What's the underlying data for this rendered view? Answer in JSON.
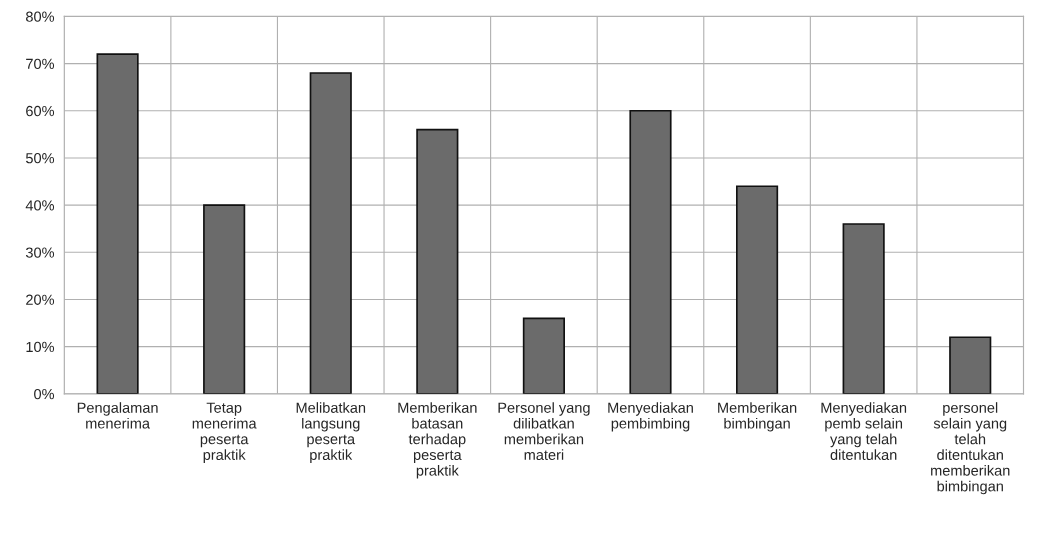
{
  "chart_data": {
    "type": "bar",
    "categories": [
      "Pengalaman\nmenerima",
      "Tetap\nmenerima\npeserta\npraktik",
      "Melibatkan\nlangsung\npeserta\npraktik",
      "Memberikan\nbatasan\nterhadap\npeserta\npraktik",
      "Personel yang\ndilibatkan\nmemberikan\nmateri",
      "Menyediakan\npembimbing",
      "Memberikan\nbimbingan",
      "Menyediakan\npemb selain\nyang telah\nditentukan",
      "personel\nselain yang\ntelah\nditentukan\nmemberikan\nbimbingan"
    ],
    "values": [
      72,
      40,
      68,
      56,
      16,
      60,
      44,
      36,
      12
    ],
    "color": "#6b6b6b",
    "ylim": [
      0,
      80
    ],
    "yticks": [
      {
        "value": 0,
        "label": "0%"
      },
      {
        "value": 10,
        "label": "10%"
      },
      {
        "value": 20,
        "label": "20%"
      },
      {
        "value": 30,
        "label": "30%"
      },
      {
        "value": 40,
        "label": "40%"
      },
      {
        "value": 50,
        "label": "50%"
      },
      {
        "value": 60,
        "label": "60%"
      },
      {
        "value": 70,
        "label": "70%"
      },
      {
        "value": 80,
        "label": "80%"
      }
    ],
    "grid": true
  }
}
